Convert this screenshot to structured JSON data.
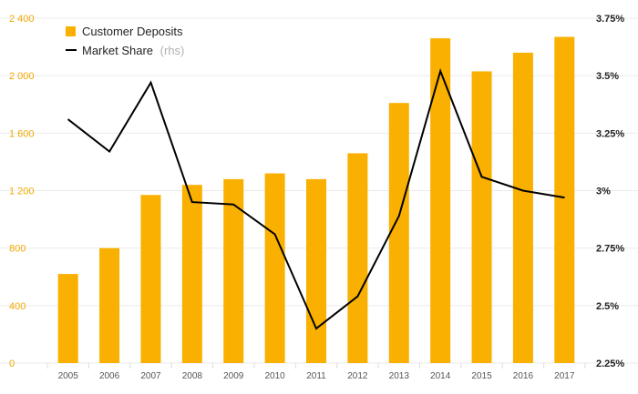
{
  "chart_data": {
    "type": "bar+line",
    "categories": [
      "2005",
      "2006",
      "2007",
      "2008",
      "2009",
      "2010",
      "2011",
      "2012",
      "2013",
      "2014",
      "2015",
      "2016",
      "2017"
    ],
    "series": [
      {
        "name": "Customer Deposits",
        "type": "bar",
        "axis": "left",
        "color": "#f9b000",
        "values": [
          620,
          800,
          1170,
          1240,
          1280,
          1320,
          1280,
          1460,
          1810,
          2260,
          2030,
          2160,
          2270
        ]
      },
      {
        "name": "Market Share",
        "suffix": "(rhs)",
        "type": "line",
        "axis": "right",
        "color": "#000000",
        "values": [
          3.31,
          3.17,
          3.47,
          2.95,
          2.94,
          2.81,
          2.4,
          2.54,
          2.89,
          3.52,
          3.06,
          3.0,
          2.97
        ]
      }
    ],
    "left_axis": {
      "range": [
        0,
        2400
      ],
      "ticks": [
        0,
        400,
        800,
        1200,
        1600,
        2000,
        2400
      ],
      "tick_labels": [
        "0",
        "400",
        "800",
        "1 200",
        "1 600",
        "2 000",
        "2 400"
      ],
      "color": "#f0a800"
    },
    "right_axis": {
      "range": [
        2.25,
        3.75
      ],
      "ticks": [
        2.25,
        2.5,
        2.75,
        3.0,
        3.25,
        3.5,
        3.75
      ],
      "tick_labels": [
        "2.25%",
        "2.5%",
        "2.75%",
        "3%",
        "3.25%",
        "3.5%",
        "3.75%"
      ]
    },
    "legend": {
      "position": "top-left",
      "items": [
        {
          "label": "Customer Deposits",
          "marker": "square",
          "color": "#f9b000"
        },
        {
          "label": "Market Share",
          "suffix": "(rhs)",
          "marker": "line",
          "color": "#000000"
        }
      ]
    },
    "grid": true,
    "grid_color": "#ebebeb"
  }
}
